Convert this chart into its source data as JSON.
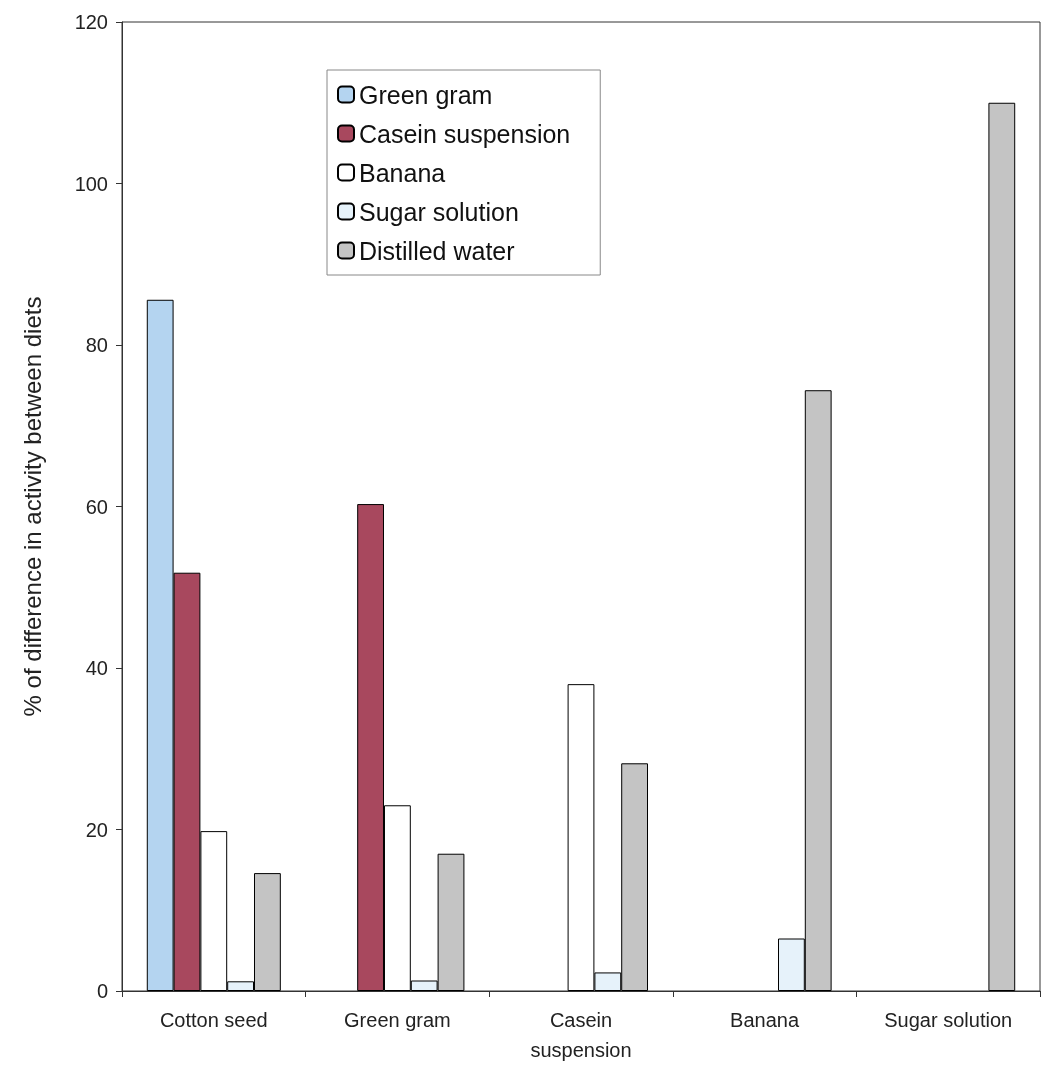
{
  "chart_data": {
    "type": "bar",
    "ylabel": "% of difference in activity between diets",
    "categories": [
      "Cotton seed",
      "Green gram",
      "Casein\nsuspension",
      "Banana",
      "Sugar solution"
    ],
    "series": [
      {
        "name": "Green gram",
        "color": "#b4d4f0",
        "values": [
          85.6,
          null,
          null,
          null,
          null
        ]
      },
      {
        "name": "Casein suspension",
        "color": "#a8485e",
        "values": [
          51.8,
          60.3,
          null,
          null,
          null
        ]
      },
      {
        "name": "Banana",
        "color": "#ffffff",
        "values": [
          19.8,
          23,
          38,
          null,
          null
        ]
      },
      {
        "name": "Sugar solution",
        "color": "#e6f2fa",
        "values": [
          1.2,
          1.3,
          2.3,
          6.5,
          null
        ]
      },
      {
        "name": "Distilled water",
        "color": "#c4c4c4",
        "values": [
          14.6,
          17,
          28.2,
          74.4,
          110
        ]
      }
    ],
    "ylim": [
      0,
      120
    ],
    "yticks": [
      0,
      20,
      40,
      60,
      80,
      100,
      120
    ],
    "grid": false,
    "legend": "top left"
  }
}
